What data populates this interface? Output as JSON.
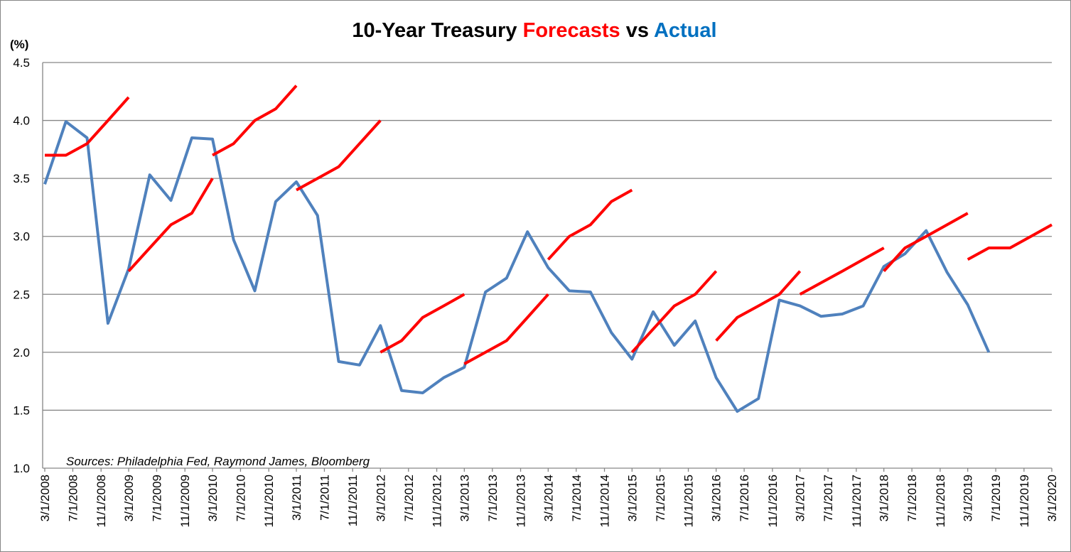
{
  "chart_data": {
    "type": "line",
    "title": [
      "10-Year Treasury",
      "Forecasts",
      "vs",
      "Actual"
    ],
    "y_label": "(%)",
    "annotation": "Sources: Philadelphia Fed, Raymond James, Bloomberg",
    "xlim": [
      "3/1/2008",
      "3/1/2020"
    ],
    "xticks": [
      "3/1/2008",
      "7/1/2008",
      "11/1/2008",
      "3/1/2009",
      "7/1/2009",
      "11/1/2009",
      "3/1/2010",
      "7/1/2010",
      "11/1/2010",
      "3/1/2011",
      "7/1/2011",
      "11/1/2011",
      "3/1/2012",
      "7/1/2012",
      "11/1/2012",
      "3/1/2013",
      "7/1/2013",
      "11/1/2013",
      "3/1/2014",
      "7/1/2014",
      "11/1/2014",
      "3/1/2015",
      "7/1/2015",
      "11/1/2015",
      "3/1/2016",
      "7/1/2016",
      "11/1/2016",
      "3/1/2017",
      "7/1/2017",
      "11/1/2017",
      "3/1/2018",
      "7/1/2018",
      "11/1/2018",
      "3/1/2019",
      "7/1/2019",
      "11/1/2019",
      "3/1/2020"
    ],
    "ylim": [
      1,
      4.5
    ],
    "yticks": [
      {
        "value": 1,
        "label": "1.0"
      },
      1.5,
      {
        "value": 2,
        "label": "2.0"
      },
      2.5,
      {
        "value": 3,
        "label": "3.0"
      },
      3.5,
      {
        "value": 4,
        "label": "4.0"
      },
      4.5
    ],
    "grid": true,
    "series": [
      {
        "color": "#4f81bd",
        "x": [
          "3/1/2008",
          "6/1/2008",
          "9/1/2008",
          "12/1/2008",
          "3/1/2009",
          "6/1/2009",
          "9/1/2009",
          "12/1/2009",
          "3/1/2010",
          "6/1/2010",
          "9/1/2010",
          "12/1/2010",
          "3/1/2011",
          "6/1/2011",
          "9/1/2011",
          "12/1/2011",
          "3/1/2012",
          "6/1/2012",
          "9/1/2012",
          "12/1/2012",
          "3/1/2013",
          "6/1/2013",
          "9/1/2013",
          "12/1/2013",
          "3/1/2014",
          "6/1/2014",
          "9/1/2014",
          "12/1/2014",
          "3/1/2015",
          "6/1/2015",
          "9/1/2015",
          "12/1/2015",
          "3/1/2016",
          "6/1/2016",
          "9/1/2016",
          "12/1/2016",
          "3/1/2017",
          "6/1/2017",
          "9/1/2017",
          "12/1/2017",
          "3/1/2018",
          "6/1/2018",
          "9/1/2018",
          "12/1/2018",
          "3/1/2019",
          "6/1/2019"
        ],
        "values": [
          3.45,
          3.99,
          3.85,
          2.25,
          2.72,
          3.53,
          3.31,
          3.85,
          3.84,
          2.97,
          2.53,
          3.3,
          3.47,
          3.18,
          1.92,
          1.89,
          2.23,
          1.67,
          1.65,
          1.78,
          1.87,
          2.52,
          2.64,
          3.04,
          2.73,
          2.53,
          2.52,
          2.17,
          1.94,
          2.35,
          2.06,
          2.27,
          1.78,
          1.49,
          1.6,
          2.45,
          2.4,
          2.31,
          2.33,
          2.4,
          2.74,
          2.85,
          3.05,
          2.69,
          2.41,
          2.0
        ]
      },
      {
        "color": "#ff0000",
        "x": [
          "3/1/2008",
          "6/1/2008",
          "9/1/2008",
          "12/1/2008",
          "3/1/2009"
        ],
        "values": [
          3.7,
          3.7,
          3.8,
          4.0,
          4.2
        ]
      },
      {
        "color": "#ff0000",
        "x": [
          "3/1/2009",
          "6/1/2009",
          "9/1/2009",
          "12/1/2009",
          "3/1/2010"
        ],
        "values": [
          2.7,
          2.9,
          3.1,
          3.2,
          3.5
        ]
      },
      {
        "color": "#ff0000",
        "x": [
          "3/1/2010",
          "6/1/2010",
          "9/1/2010",
          "12/1/2010",
          "3/1/2011"
        ],
        "values": [
          3.7,
          3.8,
          4.0,
          4.1,
          4.3
        ]
      },
      {
        "color": "#ff0000",
        "x": [
          "3/1/2011",
          "6/1/2011",
          "9/1/2011",
          "12/1/2011",
          "3/1/2012"
        ],
        "values": [
          3.4,
          3.5,
          3.6,
          3.8,
          4.0
        ]
      },
      {
        "color": "#ff0000",
        "x": [
          "3/1/2012",
          "6/1/2012",
          "9/1/2012",
          "12/1/2012",
          "3/1/2013"
        ],
        "values": [
          2.0,
          2.1,
          2.3,
          2.4,
          2.5
        ]
      },
      {
        "color": "#ff0000",
        "x": [
          "3/1/2013",
          "6/1/2013",
          "9/1/2013",
          "12/1/2013",
          "3/1/2014"
        ],
        "values": [
          1.9,
          2.0,
          2.1,
          2.3,
          2.5
        ]
      },
      {
        "color": "#ff0000",
        "x": [
          "3/1/2014",
          "6/1/2014",
          "9/1/2014",
          "12/1/2014",
          "3/1/2015"
        ],
        "values": [
          2.8,
          3.0,
          3.1,
          3.3,
          3.4
        ]
      },
      {
        "color": "#ff0000",
        "x": [
          "3/1/2015",
          "6/1/2015",
          "9/1/2015",
          "12/1/2015",
          "3/1/2016"
        ],
        "values": [
          2.0,
          2.2,
          2.4,
          2.5,
          2.7
        ]
      },
      {
        "color": "#ff0000",
        "x": [
          "3/1/2016",
          "6/1/2016",
          "9/1/2016",
          "12/1/2016",
          "3/1/2017"
        ],
        "values": [
          2.1,
          2.3,
          2.4,
          2.5,
          2.7
        ]
      },
      {
        "color": "#ff0000",
        "x": [
          "3/1/2017",
          "6/1/2017",
          "9/1/2017",
          "12/1/2017",
          "3/1/2018"
        ],
        "values": [
          2.5,
          2.6,
          2.7,
          2.8,
          2.9
        ]
      },
      {
        "color": "#ff0000",
        "x": [
          "3/1/2018",
          "6/1/2018",
          "9/1/2018",
          "12/1/2018",
          "3/1/2019"
        ],
        "values": [
          2.7,
          2.9,
          3.0,
          3.1,
          3.2
        ]
      },
      {
        "color": "#ff0000",
        "x": [
          "3/1/2019",
          "6/1/2019",
          "9/1/2019",
          "12/1/2019",
          "3/1/2020"
        ],
        "values": [
          2.8,
          2.9,
          2.9,
          3.0,
          3.1
        ]
      }
    ]
  }
}
